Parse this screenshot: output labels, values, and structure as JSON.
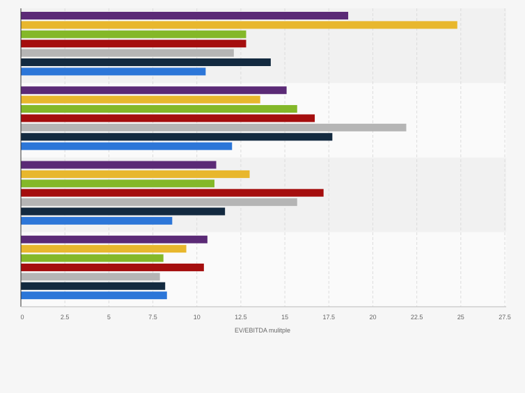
{
  "chart_data": {
    "type": "bar",
    "orientation": "horizontal",
    "categories": [
      "",
      "",
      "",
      ""
    ],
    "series": [
      {
        "color": "#5b2a76",
        "values": [
          18.6,
          15.1,
          11.1,
          10.6
        ]
      },
      {
        "color": "#e8b72d",
        "values": [
          24.8,
          13.6,
          13.0,
          9.4
        ]
      },
      {
        "color": "#84b829",
        "values": [
          12.8,
          15.7,
          11.0,
          8.1
        ]
      },
      {
        "color": "#a50e0e",
        "values": [
          12.8,
          16.7,
          17.2,
          10.4
        ]
      },
      {
        "color": "#b5b5b5",
        "values": [
          12.1,
          21.9,
          15.7,
          7.9
        ]
      },
      {
        "color": "#132a40",
        "values": [
          14.2,
          17.7,
          11.6,
          8.2
        ]
      },
      {
        "color": "#2c76d8",
        "values": [
          10.5,
          12.0,
          8.6,
          8.3
        ]
      }
    ],
    "xlim": [
      0,
      27.5
    ],
    "xticks": [
      "0",
      "2.5",
      "5",
      "7.5",
      "10",
      "12.5",
      "15",
      "17.5",
      "20",
      "22.5",
      "25",
      "27.5"
    ],
    "xlabel": "EV/EBITDA mulitple",
    "ylabel": "",
    "title": "",
    "grid": true,
    "legend": "none"
  }
}
